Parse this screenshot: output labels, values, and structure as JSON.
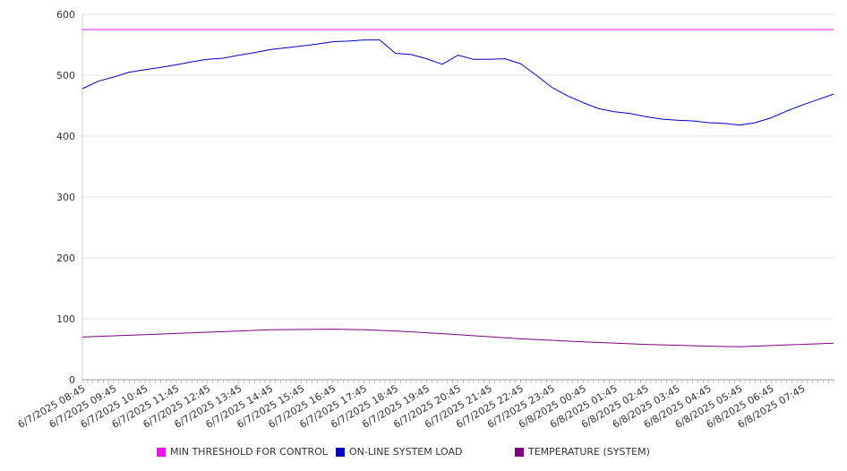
{
  "chart_data": {
    "type": "line",
    "title": "",
    "xlabel": "",
    "ylabel": "",
    "ylim": [
      0,
      600
    ],
    "y_ticks": [
      0,
      100,
      200,
      300,
      400,
      500,
      600
    ],
    "grid": true,
    "legend_position": "bottom",
    "x_start": "6/7/2025 08:45",
    "x_end": "6/8/2025 08:45",
    "x_tick_labels": [
      "6/7/2025 08:45",
      "6/7/2025 09:45",
      "6/7/2025 10:45",
      "6/7/2025 11:45",
      "6/7/2025 12:45",
      "6/7/2025 13:45",
      "6/7/2025 14:45",
      "6/7/2025 15:45",
      "6/7/2025 16:45",
      "6/7/2025 17:45",
      "6/7/2025 18:45",
      "6/7/2025 19:45",
      "6/7/2025 20:45",
      "6/7/2025 21:45",
      "6/7/2025 22:45",
      "6/7/2025 23:45",
      "6/8/2025 00:45",
      "6/8/2025 01:45",
      "6/8/2025 02:45",
      "6/8/2025 03:45",
      "6/8/2025 04:45",
      "6/8/2025 05:45",
      "6/8/2025 06:45",
      "6/8/2025 07:45"
    ],
    "series": [
      {
        "name": "MIN THRESHOLD FOR CONTROL",
        "color": "#ee11ee",
        "x": [
          "6/7/2025 08:45",
          "6/8/2025 08:45"
        ],
        "values": [
          575,
          575
        ]
      },
      {
        "name": "ON-LINE SYSTEM LOAD",
        "color": "#0000cc",
        "x": [
          "6/7/2025 08:45",
          "6/7/2025 09:15",
          "6/7/2025 09:45",
          "6/7/2025 10:15",
          "6/7/2025 10:45",
          "6/7/2025 11:15",
          "6/7/2025 11:45",
          "6/7/2025 12:15",
          "6/7/2025 12:45",
          "6/7/2025 13:15",
          "6/7/2025 13:45",
          "6/7/2025 14:15",
          "6/7/2025 14:45",
          "6/7/2025 15:15",
          "6/7/2025 15:45",
          "6/7/2025 16:15",
          "6/7/2025 16:45",
          "6/7/2025 17:15",
          "6/7/2025 17:45",
          "6/7/2025 18:15",
          "6/7/2025 18:45",
          "6/7/2025 19:15",
          "6/7/2025 19:45",
          "6/7/2025 20:15",
          "6/7/2025 20:45",
          "6/7/2025 21:15",
          "6/7/2025 21:45",
          "6/7/2025 22:15",
          "6/7/2025 22:45",
          "6/7/2025 23:15",
          "6/7/2025 23:45",
          "6/8/2025 00:15",
          "6/8/2025 00:45",
          "6/8/2025 01:15",
          "6/8/2025 01:45",
          "6/8/2025 02:15",
          "6/8/2025 02:45",
          "6/8/2025 03:15",
          "6/8/2025 03:45",
          "6/8/2025 04:15",
          "6/8/2025 04:45",
          "6/8/2025 05:15",
          "6/8/2025 05:45",
          "6/8/2025 06:15",
          "6/8/2025 06:45",
          "6/8/2025 07:15",
          "6/8/2025 07:45",
          "6/8/2025 08:15",
          "6/8/2025 08:45"
        ],
        "values": [
          478,
          490,
          497,
          505,
          509,
          513,
          517,
          522,
          526,
          528,
          533,
          537,
          542,
          545,
          548,
          551,
          555,
          556,
          558,
          558,
          536,
          534,
          527,
          518,
          533,
          526,
          526,
          527,
          519,
          500,
          480,
          466,
          455,
          445,
          440,
          437,
          432,
          428,
          426,
          425,
          422,
          421,
          418,
          422,
          430,
          441,
          451,
          460,
          469
        ]
      },
      {
        "name": "TEMPERATURE (SYSTEM)",
        "color": "#800080",
        "x": [
          "6/7/2025 08:45",
          "6/7/2025 10:45",
          "6/7/2025 12:45",
          "6/7/2025 14:45",
          "6/7/2025 16:45",
          "6/7/2025 17:45",
          "6/7/2025 18:45",
          "6/7/2025 20:45",
          "6/7/2025 22:45",
          "6/8/2025 00:45",
          "6/8/2025 02:45",
          "6/8/2025 04:45",
          "6/8/2025 05:45",
          "6/8/2025 06:45",
          "6/8/2025 08:45"
        ],
        "values": [
          70,
          74,
          78,
          82,
          83,
          82,
          80,
          74,
          67,
          62,
          58,
          55,
          54,
          56,
          60
        ]
      }
    ]
  }
}
